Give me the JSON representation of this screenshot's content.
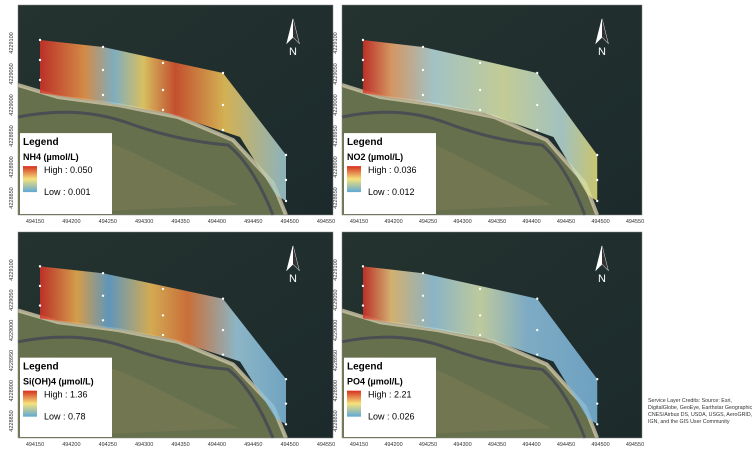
{
  "panels": [
    {
      "legend_title": "Legend",
      "variable": "NH4 (µmol/L)",
      "high": "High : 0.050",
      "low": "Low : 0.001",
      "north": "N"
    },
    {
      "legend_title": "Legend",
      "variable": "NO2 (µmol/L)",
      "high": "High : 0.036",
      "low": "Low : 0.012",
      "north": "N"
    },
    {
      "legend_title": "Legend",
      "variable": "Si(OH)4 (µmol/L)",
      "high": "High : 1.36",
      "low": "Low : 0.78",
      "north": "N"
    },
    {
      "legend_title": "Legend",
      "variable": "PO4 (µmol/L)",
      "high": "High : 2.21",
      "low": "Low : 0.026",
      "north": "N"
    }
  ],
  "x_ticks": [
    "494150",
    "494200",
    "494250",
    "494300",
    "494350",
    "494400",
    "494450",
    "494500",
    "494550"
  ],
  "y_ticks": [
    "4229100",
    "4229050",
    "4229000",
    "4228950",
    "4228900",
    "4228850"
  ],
  "credits": [
    "Service Layer Credits: Source: Esri,",
    "DigitalGlobe, GeoEye, Earthstar Geographic",
    "CNES/Airbus DS, USDA, USGS, AeroGRID,",
    "IGN, and the GIS User Community"
  ]
}
